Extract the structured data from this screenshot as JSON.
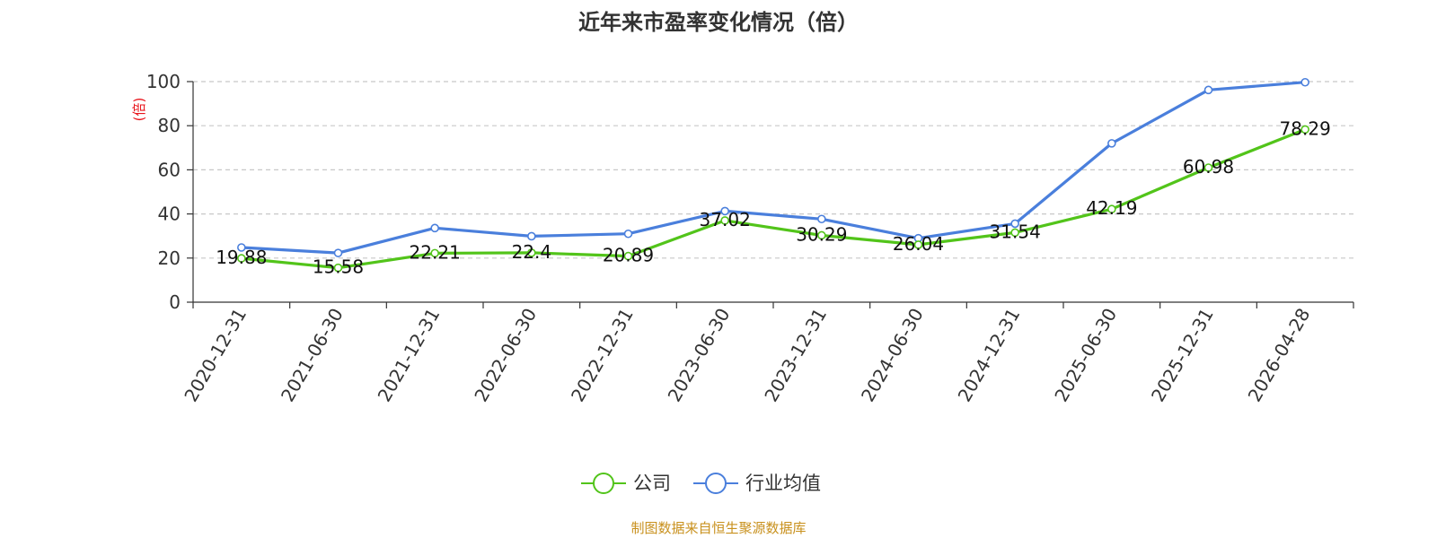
{
  "chart_data": {
    "type": "line",
    "title": "近年来市盈率变化情况（倍）",
    "ylabel": "(倍)",
    "xlabel": "",
    "categories": [
      "2020-12-31",
      "2021-06-30",
      "2021-12-31",
      "2022-06-30",
      "2022-12-31",
      "2023-06-30",
      "2023-12-31",
      "2024-06-30",
      "2024-12-31",
      "2025-06-30",
      "2025-12-31",
      "2026-04-28"
    ],
    "ylim": [
      0,
      100
    ],
    "yticks": [
      0,
      20,
      40,
      60,
      80,
      100
    ],
    "grid": true,
    "legend_position": "bottom",
    "series": [
      {
        "name": "公司",
        "color": "#52c41a",
        "values": [
          19.88,
          15.58,
          22.21,
          22.4,
          20.89,
          37.02,
          30.29,
          26.04,
          31.54,
          42.19,
          60.98,
          78.29
        ],
        "labels": [
          "19.88",
          "15.58",
          "22.21",
          "22.4",
          "20.89",
          "37.02",
          "30.29",
          "26.04",
          "31.54",
          "42.19",
          "60.98",
          "78.29"
        ]
      },
      {
        "name": "行业均值",
        "color": "#4a7fdc",
        "values": [
          24.8,
          22.3,
          33.6,
          29.9,
          31.0,
          41.3,
          37.7,
          29.0,
          35.6,
          72.0,
          96.2,
          99.7
        ]
      }
    ]
  },
  "source_note": "制图数据来自恒生聚源数据库"
}
